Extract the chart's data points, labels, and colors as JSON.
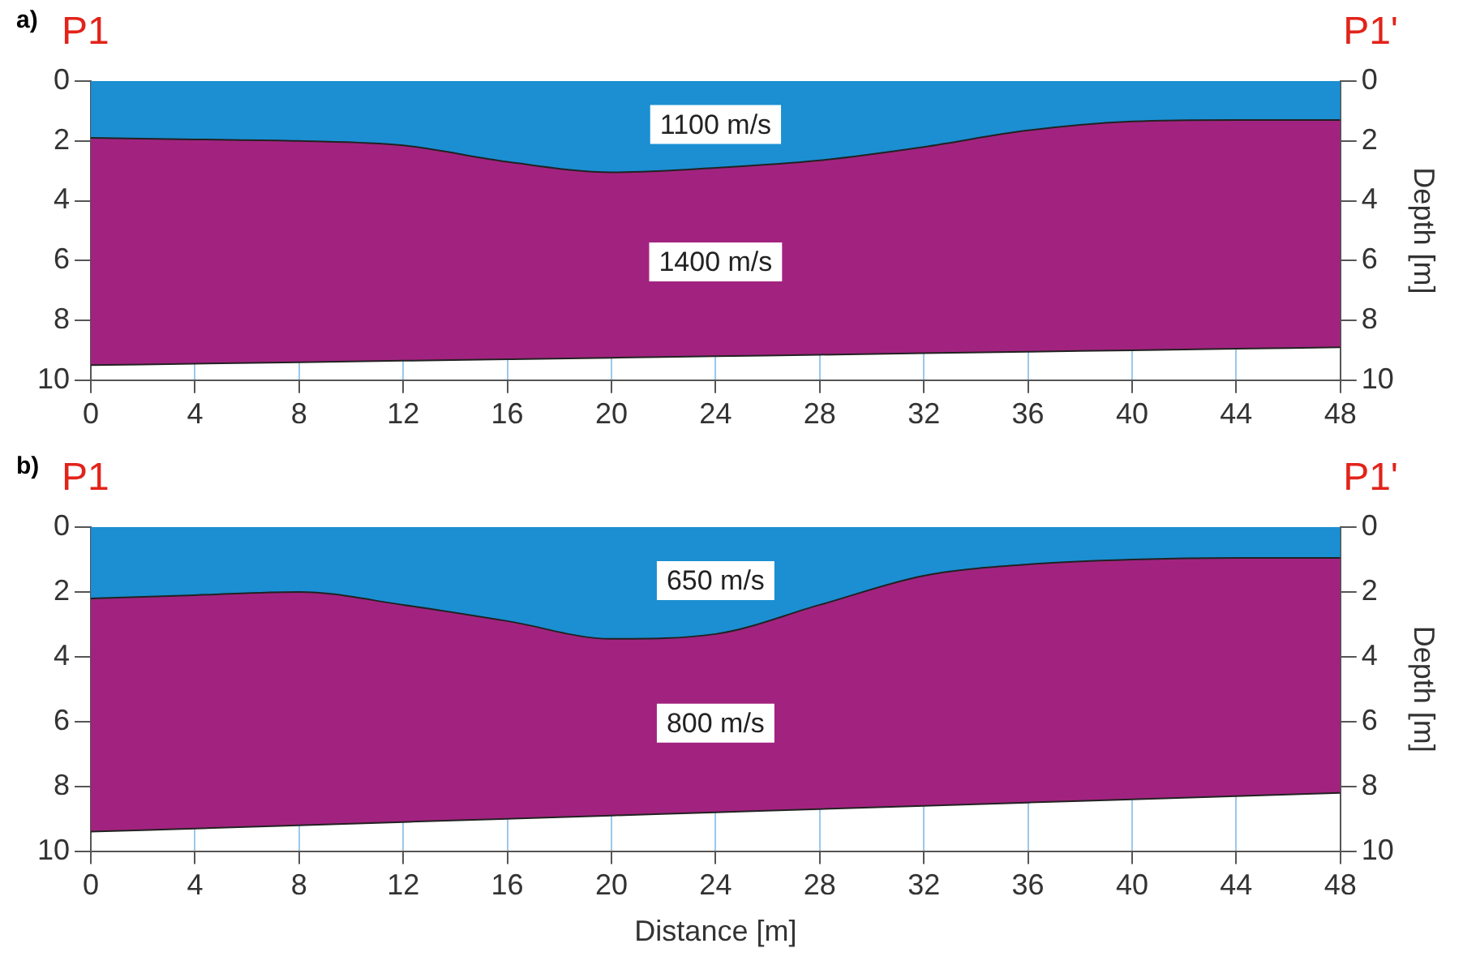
{
  "chart_data": [
    {
      "type": "area",
      "title": "a)",
      "annotations": [
        "P1",
        "P1'"
      ],
      "y2label": "Depth [m]",
      "stacked": true,
      "grid": "x",
      "legend": false,
      "x": [
        0,
        4,
        8,
        12,
        16,
        20,
        24,
        28,
        32,
        36,
        40,
        44,
        48
      ],
      "series": [
        {
          "name": "1100 m/s",
          "color": "#1b8fd2",
          "values": [
            1.9,
            1.95,
            2.0,
            2.15,
            2.7,
            3.05,
            2.9,
            2.65,
            2.2,
            1.65,
            1.35,
            1.3,
            1.3
          ]
        },
        {
          "name": "1400 m/s",
          "color": "#a2237f",
          "values": [
            7.6,
            7.5,
            7.4,
            7.2,
            6.6,
            6.2,
            6.3,
            6.5,
            6.9,
            7.4,
            7.65,
            7.65,
            7.6
          ]
        }
      ],
      "xlim": [
        0,
        48
      ],
      "xticks": [
        0,
        4,
        8,
        12,
        16,
        20,
        24,
        28,
        32,
        36,
        40,
        44,
        48
      ],
      "ylim": [
        10,
        0
      ],
      "yticks": [
        0,
        2,
        4,
        6,
        8,
        10
      ],
      "y2lim": [
        10,
        0
      ],
      "y2ticks": [
        0,
        2,
        4,
        6,
        8,
        10
      ]
    },
    {
      "type": "area",
      "title": "b)",
      "annotations": [
        "P1",
        "P1'"
      ],
      "xlabel": "Distance [m]",
      "y2label": "Depth [m]",
      "stacked": true,
      "grid": "x",
      "legend": false,
      "x": [
        0,
        4,
        8,
        12,
        16,
        20,
        24,
        28,
        32,
        36,
        40,
        44,
        48
      ],
      "series": [
        {
          "name": "650 m/s",
          "color": "#1b8fd2",
          "values": [
            2.2,
            2.1,
            2.0,
            2.4,
            2.9,
            3.45,
            3.3,
            2.4,
            1.5,
            1.15,
            1.0,
            0.95,
            0.95
          ]
        },
        {
          "name": "800 m/s",
          "color": "#a2237f",
          "values": [
            7.2,
            7.2,
            7.2,
            6.7,
            6.1,
            5.45,
            5.5,
            6.3,
            7.1,
            7.35,
            7.4,
            7.35,
            7.25
          ]
        }
      ],
      "xlim": [
        0,
        48
      ],
      "xticks": [
        0,
        4,
        8,
        12,
        16,
        20,
        24,
        28,
        32,
        36,
        40,
        44,
        48
      ],
      "ylim": [
        10,
        0
      ],
      "yticks": [
        0,
        2,
        4,
        6,
        8,
        10
      ],
      "y2lim": [
        10,
        0
      ],
      "y2ticks": [
        0,
        2,
        4,
        6,
        8,
        10
      ]
    }
  ]
}
